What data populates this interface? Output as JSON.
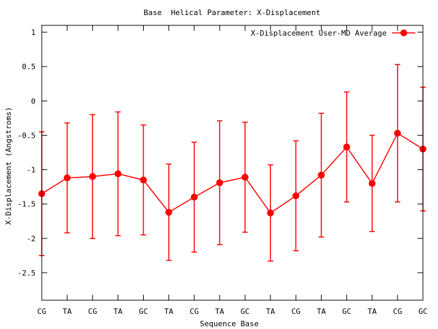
{
  "chart_data": {
    "type": "line",
    "title": "Base  Helical Parameter: X-Displacement",
    "xlabel": "Sequence Base",
    "ylabel": "X-Displacement (Angstroms)",
    "ylim": [
      -2.9,
      1.1
    ],
    "yticks": [
      1,
      0.5,
      0,
      -0.5,
      -1,
      -1.5,
      -2,
      -2.5
    ],
    "ytick_labels": [
      "1",
      "0.5",
      "0",
      "-0.5",
      "-1",
      "-1.5",
      "-2",
      "-2.5"
    ],
    "grid": false,
    "legend_position": "top-right",
    "categories": [
      "CG",
      "TA",
      "CG",
      "TA",
      "GC",
      "TA",
      "CG",
      "TA",
      "GC",
      "TA",
      "CG",
      "TA",
      "GC",
      "TA",
      "CG",
      "GC"
    ],
    "series": [
      {
        "name": "X-Displacement User-MD Average",
        "color": "#ff0000",
        "values": [
          -1.35,
          -1.12,
          -1.1,
          -1.06,
          -1.15,
          -1.62,
          -1.4,
          -1.19,
          -1.11,
          -1.63,
          -1.38,
          -1.08,
          -0.67,
          -1.2,
          -0.47,
          -0.7
        ],
        "error": [
          0.9,
          0.8,
          0.9,
          0.9,
          0.8,
          0.7,
          0.8,
          0.9,
          0.8,
          0.7,
          0.8,
          0.9,
          0.8,
          0.7,
          1.0,
          0.9
        ]
      }
    ]
  }
}
